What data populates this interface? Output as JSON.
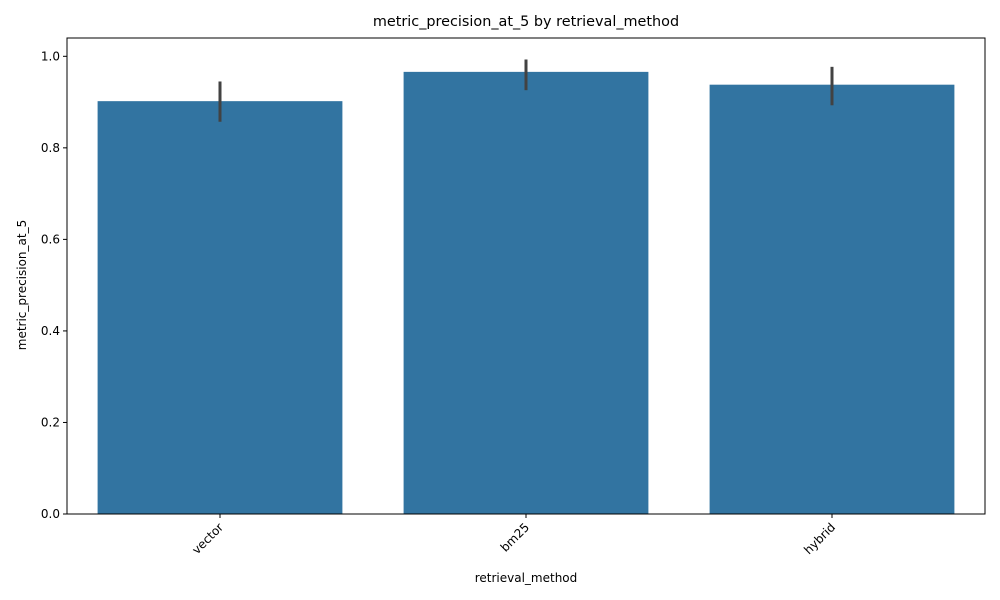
{
  "chart_data": {
    "type": "bar",
    "title": "metric_precision_at_5 by retrieval_method",
    "xlabel": "retrieval_method",
    "ylabel": "metric_precision_at_5",
    "categories": [
      "vector",
      "bm25",
      "hybrid"
    ],
    "values": [
      0.902,
      0.966,
      0.938
    ],
    "error_low": [
      0.857,
      0.926,
      0.893
    ],
    "error_high": [
      0.945,
      0.993,
      0.977
    ],
    "ylim": [
      0,
      1.04
    ],
    "yticks": [
      0.0,
      0.2,
      0.4,
      0.6,
      0.8,
      1.0
    ],
    "ytick_labels": [
      "0.0",
      "0.2",
      "0.4",
      "0.6",
      "0.8",
      "1.0"
    ],
    "grid": false,
    "bar_color": "#3274a1",
    "error_color": "#424242",
    "x_tick_rotation_deg": 45
  }
}
